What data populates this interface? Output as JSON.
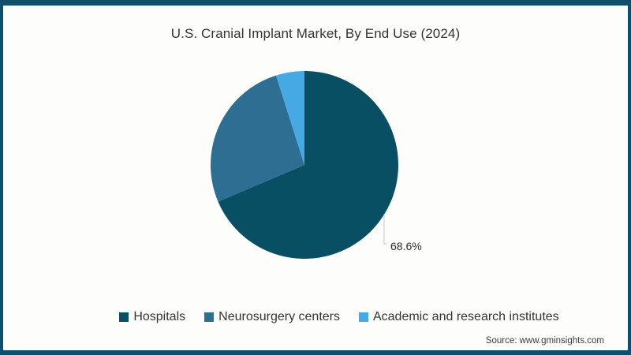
{
  "chart_data": {
    "type": "pie",
    "title": "U.S. Cranial Implant Market, By End Use (2024)",
    "categories": [
      "Hospitals",
      "Neurosurgery centers",
      "Academic and research institutes"
    ],
    "values": [
      68.6,
      26.5,
      4.9
    ],
    "colors": [
      "#084f63",
      "#2e6e92",
      "#47a9e3"
    ],
    "start_angle_deg": 0,
    "direction": "clockwise",
    "legend_position": "bottom",
    "point_labels": [
      {
        "category": "Hospitals",
        "text": "68.6%"
      }
    ]
  },
  "footer": {
    "source": "Source: www.gminsights.com"
  },
  "style": {
    "frame_color": "#0e4f6e",
    "background": "#fdfefc",
    "text_color": "#333333",
    "leader_line_color": "#c6c6c6"
  }
}
